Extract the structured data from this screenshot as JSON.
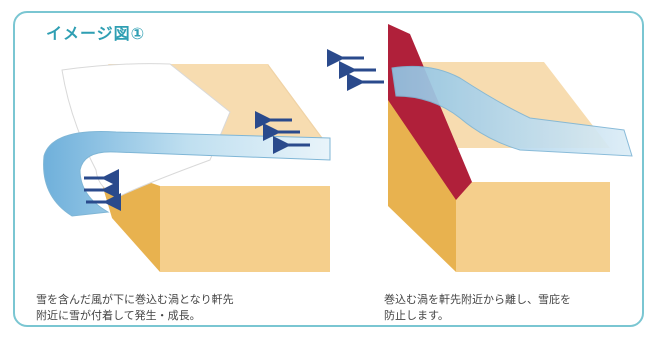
{
  "title": "イメージ図①",
  "captions": {
    "left": [
      "雪を含んだ風が下に巻込む渦となり軒先",
      "附近に雪が付着して発生・成長。"
    ],
    "right": [
      "巻込む渦を軒先附近から離し、雪庇を",
      "防止します。"
    ]
  },
  "colors": {
    "frame": "#7ac6d2",
    "title": "#2f9fb3",
    "building_front": "#f5cf8c",
    "building_side": "#e8b24f",
    "building_top": "#f7dcb0",
    "airflow": "#a9d0e6",
    "arrows": "#2a4a8c",
    "fence": "#b0203a",
    "snow": "#ffffff"
  }
}
